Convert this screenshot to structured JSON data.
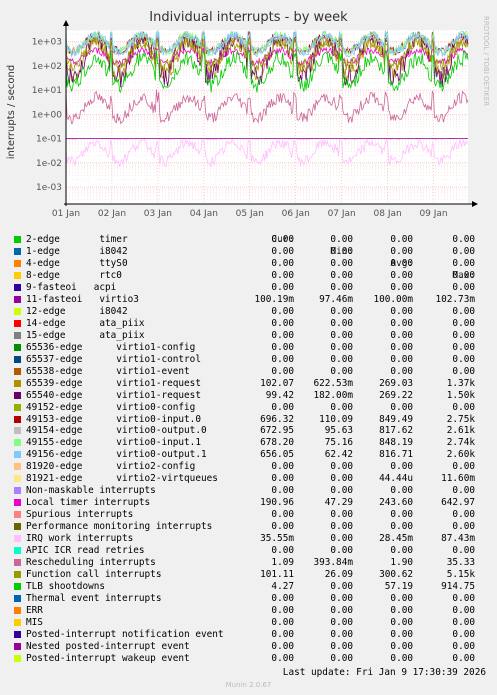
{
  "title": "Individual interrupts - by week",
  "side_label": "RRDTOOL / TOBI OETIKER",
  "last_update": "Last update: Fri Jan  9 17:30:39 2026",
  "footer": "Munin 2.0.67",
  "legend_headers": {
    "cur": "Cur:",
    "min": "Min:",
    "avg": "Avg:",
    "max": "Max:"
  },
  "chart_data": {
    "type": "line",
    "title": "Individual interrupts - by week",
    "ylabel": "interrupts / second",
    "yscale": "log",
    "ylim": [
      0.0002,
      3000
    ],
    "yticks": [
      "1e-03",
      "1e-02",
      "1e-01",
      "1e+00",
      "1e+01",
      "1e+02",
      "1e+03"
    ],
    "xticks": [
      "01 Jan",
      "02 Jan",
      "03 Jan",
      "04 Jan",
      "05 Jan",
      "06 Jan",
      "07 Jan",
      "08 Jan",
      "09 Jan"
    ],
    "grid": true,
    "series": [
      {
        "name": "2-edge       timer",
        "color": "#00cc00",
        "cur": "0.00",
        "min": "0.00",
        "avg": "0.00",
        "max": "0.00"
      },
      {
        "name": "1-edge       i8042",
        "color": "#0066b3",
        "cur": "0.00",
        "min": "0.00",
        "avg": "0.00",
        "max": "0.00"
      },
      {
        "name": "4-edge       ttyS0",
        "color": "#ff8000",
        "cur": "0.00",
        "min": "0.00",
        "avg": "0.00",
        "max": "0.00"
      },
      {
        "name": "8-edge       rtc0",
        "color": "#ffcc00",
        "cur": "0.00",
        "min": "0.00",
        "avg": "0.00",
        "max": "0.00"
      },
      {
        "name": "9-fasteoi   acpi",
        "color": "#330099",
        "cur": "0.00",
        "min": "0.00",
        "avg": "0.00",
        "max": "0.00"
      },
      {
        "name": "11-fasteoi   virtio3",
        "color": "#990099",
        "cur": "100.19m",
        "min": "97.46m",
        "avg": "100.00m",
        "max": "102.73m"
      },
      {
        "name": "12-edge      i8042",
        "color": "#ccff00",
        "cur": "0.00",
        "min": "0.00",
        "avg": "0.00",
        "max": "0.00"
      },
      {
        "name": "14-edge      ata_piix",
        "color": "#ff0000",
        "cur": "0.00",
        "min": "0.00",
        "avg": "0.00",
        "max": "0.00"
      },
      {
        "name": "15-edge      ata_piix",
        "color": "#808080",
        "cur": "0.00",
        "min": "0.00",
        "avg": "0.00",
        "max": "0.00"
      },
      {
        "name": "65536-edge      virtio1-config",
        "color": "#008f00",
        "cur": "0.00",
        "min": "0.00",
        "avg": "0.00",
        "max": "0.00"
      },
      {
        "name": "65537-edge      virtio1-control",
        "color": "#00487d",
        "cur": "0.00",
        "min": "0.00",
        "avg": "0.00",
        "max": "0.00"
      },
      {
        "name": "65538-edge      virtio1-event",
        "color": "#b35a00",
        "cur": "0.00",
        "min": "0.00",
        "avg": "0.00",
        "max": "0.00"
      },
      {
        "name": "65539-edge      virtio1-request",
        "color": "#b38f00",
        "cur": "102.07",
        "min": "622.53m",
        "avg": "269.03",
        "max": "1.37k"
      },
      {
        "name": "65540-edge      virtio1-request",
        "color": "#6b006b",
        "cur": "99.42",
        "min": "182.00m",
        "avg": "269.22",
        "max": "1.50k"
      },
      {
        "name": "49152-edge      virtio0-config",
        "color": "#8fb300",
        "cur": "0.00",
        "min": "0.00",
        "avg": "0.00",
        "max": "0.00"
      },
      {
        "name": "49153-edge      virtio0-input.0",
        "color": "#b30000",
        "cur": "696.32",
        "min": "110.09",
        "avg": "849.49",
        "max": "2.75k"
      },
      {
        "name": "49154-edge      virtio0-output.0",
        "color": "#bebebe",
        "cur": "672.95",
        "min": "95.63",
        "avg": "817.62",
        "max": "2.61k"
      },
      {
        "name": "49155-edge      virtio0-input.1",
        "color": "#80ff80",
        "cur": "678.20",
        "min": "75.16",
        "avg": "848.19",
        "max": "2.74k"
      },
      {
        "name": "49156-edge      virtio0-output.1",
        "color": "#80c9ff",
        "cur": "656.05",
        "min": "62.42",
        "avg": "816.71",
        "max": "2.60k"
      },
      {
        "name": "81920-edge      virtio2-config",
        "color": "#ffc080",
        "cur": "0.00",
        "min": "0.00",
        "avg": "0.00",
        "max": "0.00"
      },
      {
        "name": "81921-edge      virtio2-virtqueues",
        "color": "#ffe680",
        "cur": "0.00",
        "min": "0.00",
        "avg": "44.44u",
        "max": "11.60m"
      },
      {
        "name": "Non-maskable interrupts",
        "color": "#aa80ff",
        "cur": "0.00",
        "min": "0.00",
        "avg": "0.00",
        "max": "0.00"
      },
      {
        "name": "Local timer interrupts",
        "color": "#ee00cc",
        "cur": "190.96",
        "min": "47.29",
        "avg": "243.60",
        "max": "642.97"
      },
      {
        "name": "Spurious interrupts",
        "color": "#ff8080",
        "cur": "0.00",
        "min": "0.00",
        "avg": "0.00",
        "max": "0.00"
      },
      {
        "name": "Performance monitoring interrupts",
        "color": "#666600",
        "cur": "0.00",
        "min": "0.00",
        "avg": "0.00",
        "max": "0.00"
      },
      {
        "name": "IRQ work interrupts",
        "color": "#ffbfff",
        "cur": "35.55m",
        "min": "0.00",
        "avg": "28.45m",
        "max": "87.43m"
      },
      {
        "name": "APIC ICR read retries",
        "color": "#00ffcc",
        "cur": "0.00",
        "min": "0.00",
        "avg": "0.00",
        "max": "0.00"
      },
      {
        "name": "Rescheduling interrupts",
        "color": "#cc6699",
        "cur": "1.09",
        "min": "393.84m",
        "avg": "1.90",
        "max": "35.33"
      },
      {
        "name": "Function call interrupts",
        "color": "#999900",
        "cur": "101.11",
        "min": "26.09",
        "avg": "300.62",
        "max": "5.15k"
      },
      {
        "name": "TLB shootdowns",
        "color": "#00cc00",
        "cur": "4.27",
        "min": "0.00",
        "avg": "57.19",
        "max": "914.75"
      },
      {
        "name": "Thermal event interrupts",
        "color": "#0066b3",
        "cur": "0.00",
        "min": "0.00",
        "avg": "0.00",
        "max": "0.00"
      },
      {
        "name": "ERR",
        "color": "#ff8000",
        "cur": "0.00",
        "min": "0.00",
        "avg": "0.00",
        "max": "0.00"
      },
      {
        "name": "MIS",
        "color": "#ffcc00",
        "cur": "0.00",
        "min": "0.00",
        "avg": "0.00",
        "max": "0.00"
      },
      {
        "name": "Posted-interrupt notification event",
        "color": "#330099",
        "cur": "0.00",
        "min": "0.00",
        "avg": "0.00",
        "max": "0.00"
      },
      {
        "name": "Nested posted-interrupt event",
        "color": "#990099",
        "cur": "0.00",
        "min": "0.00",
        "avg": "0.00",
        "max": "0.00"
      },
      {
        "name": "Posted-interrupt wakeup event",
        "color": "#ccff00",
        "cur": "0.00",
        "min": "0.00",
        "avg": "0.00",
        "max": "0.00"
      }
    ]
  }
}
